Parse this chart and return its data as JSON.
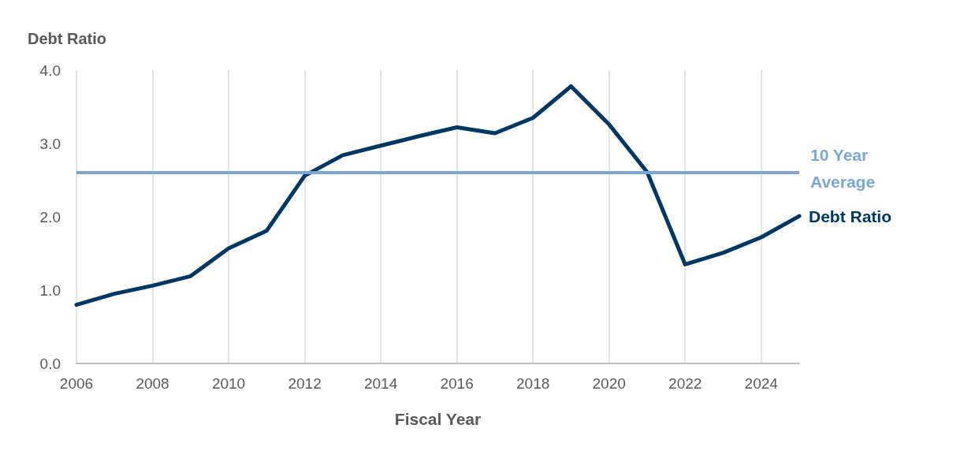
{
  "chart_data": {
    "type": "line",
    "ylabel": "Debt Ratio",
    "xlabel": "Fiscal Year",
    "x": [
      2006,
      2007,
      2008,
      2009,
      2010,
      2011,
      2012,
      2013,
      2014,
      2015,
      2016,
      2017,
      2018,
      2019,
      2020,
      2021,
      2022,
      2023,
      2024,
      2025
    ],
    "series": [
      {
        "name": "Debt Ratio",
        "color": "#003865",
        "values": [
          0.8,
          0.95,
          1.06,
          1.19,
          1.57,
          1.81,
          2.56,
          2.84,
          2.97,
          3.1,
          3.22,
          3.14,
          3.35,
          3.78,
          3.26,
          2.61,
          1.35,
          1.51,
          1.72,
          2.01
        ]
      }
    ],
    "ref_lines": [
      {
        "axis": "y",
        "value": 2.6,
        "label": "10 Year Average",
        "color": "#7aa6d6"
      }
    ],
    "xlim": [
      2006,
      2025
    ],
    "xticks": [
      2006,
      2008,
      2010,
      2012,
      2014,
      2016,
      2018,
      2020,
      2022,
      2024
    ],
    "ylim": [
      0,
      4
    ],
    "yticks": [
      {
        "value": 0,
        "label": "0.0"
      },
      {
        "value": 1,
        "label": "1.0"
      },
      {
        "value": 2,
        "label": "2.0"
      },
      {
        "value": 3,
        "label": "3.0"
      },
      {
        "value": 4,
        "label": "4.0"
      }
    ],
    "grid": "x",
    "legend": false,
    "marker": "none",
    "line_style": "solid"
  }
}
